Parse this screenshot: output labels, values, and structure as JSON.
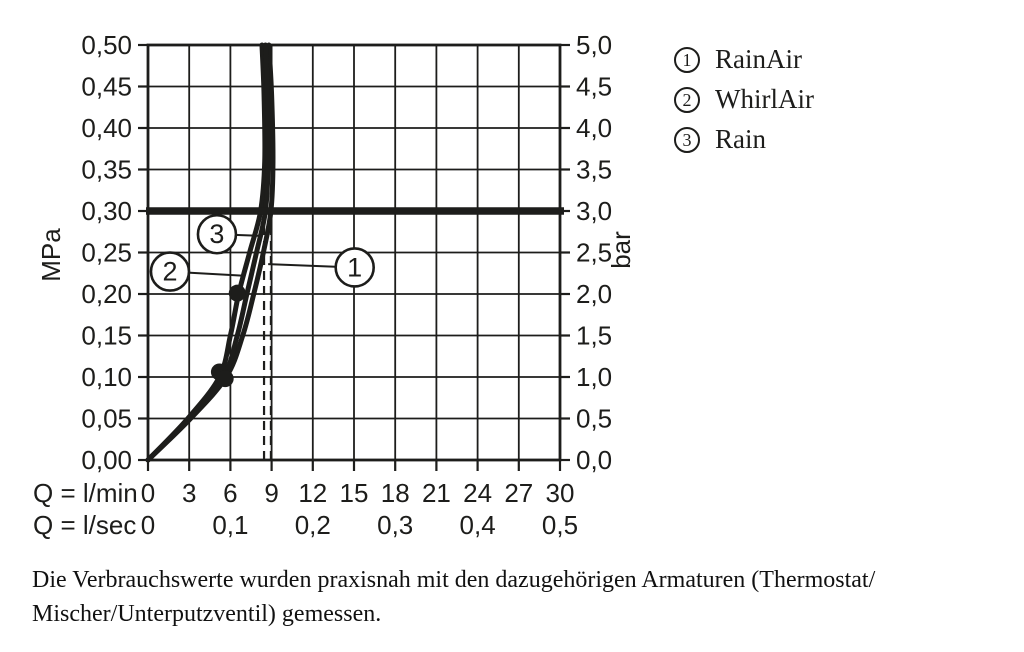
{
  "colors": {
    "ink": "#1d1d1b",
    "background": "#ffffff"
  },
  "legend": {
    "items": [
      {
        "num": "1",
        "label": "RainAir"
      },
      {
        "num": "2",
        "label": "WhirlAir"
      },
      {
        "num": "3",
        "label": "Rain"
      }
    ]
  },
  "caption": {
    "lines": [
      "Die Verbrauchswerte wurden praxisnah mit den dazugehörigen Armaturen (Thermostat/",
      "Mischer/Unterputzventil) gemessen."
    ]
  },
  "chart_data": {
    "type": "line",
    "title": "",
    "x_axis": {
      "primary_label": "Q = l/min",
      "primary_ticks": [
        "0",
        "3",
        "6",
        "9",
        "12",
        "15",
        "18",
        "21",
        "24",
        "27",
        "30"
      ],
      "primary_range": [
        0,
        30
      ],
      "secondary_label": "Q = l/sec",
      "secondary_ticks": [
        "0",
        "0,1",
        "0,2",
        "0,3",
        "0,4",
        "0,5"
      ],
      "secondary_range": [
        0,
        0.5
      ],
      "grid_step_lmin": 3
    },
    "y_axis_left": {
      "label": "MPa",
      "ticks": [
        "0,50",
        "0,45",
        "0,40",
        "0,35",
        "0,30",
        "0,25",
        "0,20",
        "0,15",
        "0,10",
        "0,05",
        "0,00"
      ],
      "range_mpa": [
        0,
        0.5
      ],
      "grid_step_mpa": 0.05
    },
    "y_axis_right": {
      "label": "bar",
      "ticks": [
        "5,0",
        "4,5",
        "4,0",
        "3,5",
        "3,0",
        "2,5",
        "2,0",
        "1,5",
        "1,0",
        "0,5",
        "0,0"
      ],
      "range_bar": [
        0,
        5
      ]
    },
    "grid": "on",
    "legend_position": "top-right",
    "reference_line": {
      "mpa": 0.3,
      "bar": 3.0
    },
    "dashed_guides_lmin": [
      8.45,
      8.95
    ],
    "dashed_guides_top_mpa": 0.3,
    "series": [
      {
        "num": "1",
        "name": "RainAir",
        "points_lmin_mpa": [
          [
            0,
            0
          ],
          [
            3.1,
            0.05
          ],
          [
            5.7,
            0.1
          ],
          [
            6.9,
            0.15
          ],
          [
            7.7,
            0.2
          ],
          [
            8.4,
            0.25
          ],
          [
            8.95,
            0.3
          ],
          [
            9.1,
            0.36
          ],
          [
            9.0,
            0.44
          ],
          [
            8.8,
            0.5
          ]
        ]
      },
      {
        "num": "2",
        "name": "WhirlAir",
        "points_lmin_mpa": [
          [
            0,
            0
          ],
          [
            2.9,
            0.05
          ],
          [
            5.2,
            0.1
          ],
          [
            6.0,
            0.15
          ],
          [
            6.6,
            0.2
          ],
          [
            7.4,
            0.25
          ],
          [
            8.2,
            0.3
          ],
          [
            8.5,
            0.36
          ],
          [
            8.45,
            0.44
          ],
          [
            8.3,
            0.5
          ]
        ]
      },
      {
        "num": "3",
        "name": "Rain",
        "points_lmin_mpa": [
          [
            0,
            0
          ],
          [
            3.0,
            0.05
          ],
          [
            5.5,
            0.1
          ],
          [
            6.5,
            0.15
          ],
          [
            7.2,
            0.2
          ],
          [
            7.9,
            0.25
          ],
          [
            8.55,
            0.3
          ],
          [
            8.75,
            0.36
          ],
          [
            8.7,
            0.44
          ],
          [
            8.55,
            0.5
          ]
        ]
      }
    ],
    "markers_lmin_mpa": [
      [
        5.2,
        0.106
      ],
      [
        5.62,
        0.098
      ],
      [
        6.5,
        0.201
      ]
    ],
    "callouts": [
      {
        "num": "1",
        "circle_lmin": 15.05,
        "circle_mpa": 0.232,
        "target_lmin": 8.75,
        "target_mpa": 0.236
      },
      {
        "num": "2",
        "circle_lmin": 1.6,
        "circle_mpa": 0.227,
        "target_lmin": 7.0,
        "target_mpa": 0.222
      },
      {
        "num": "3",
        "circle_lmin": 5.02,
        "circle_mpa": 0.272,
        "target_lmin": 8.25,
        "target_mpa": 0.27
      }
    ]
  }
}
